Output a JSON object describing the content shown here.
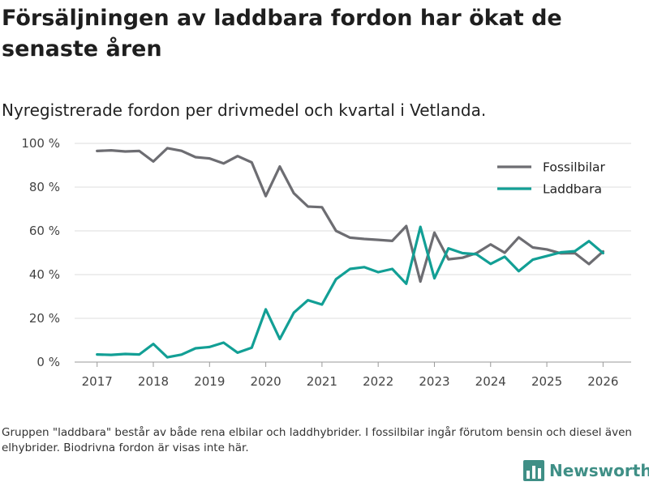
{
  "title": "Försäljningen av laddbara fordon har ökat de senaste åren",
  "subtitle": "Nyregistrerade fordon per drivmedel och kvartal i Vetlanda.",
  "footnote": "Gruppen \"laddbara\" består av både rena elbilar och laddhybrider. I fossilbilar ingår förutom bensin och diesel även elhybrider. Biodrivna fordon är visas inte här.",
  "brand": {
    "name": "Newsworthy",
    "color": "#3f8f86",
    "icon": "bar-chart-logo-icon"
  },
  "chart_data": {
    "type": "line",
    "x_ticks": [
      2017,
      2018,
      2019,
      2020,
      2021,
      2022,
      2023,
      2024,
      2025,
      2026
    ],
    "x_tick_labels": [
      "2017",
      "2018",
      "2019",
      "2020",
      "2021",
      "2022",
      "2023",
      "2024",
      "2025",
      "2026"
    ],
    "xlim": [
      2016.6,
      2026.5
    ],
    "ylim": [
      0,
      100
    ],
    "y_ticks": [
      0,
      20,
      40,
      60,
      80,
      100
    ],
    "y_tick_labels": [
      "0 %",
      "20 %",
      "40 %",
      "60 %",
      "80 %",
      "100 %"
    ],
    "grid": true,
    "legend_position": "top-right",
    "x": [
      2017,
      2017.25,
      2017.5,
      2017.75,
      2018,
      2018.25,
      2018.5,
      2018.75,
      2019,
      2019.25,
      2019.5,
      2019.75,
      2020,
      2020.25,
      2020.5,
      2020.75,
      2021,
      2021.25,
      2021.5,
      2021.75,
      2022,
      2022.25,
      2022.5,
      2022.75,
      2023,
      2023.25,
      2023.5,
      2023.75,
      2024,
      2024.25,
      2024.5,
      2024.75,
      2025,
      2025.25,
      2025.5,
      2025.75,
      2026
    ],
    "series": [
      {
        "name": "Fossilbilar",
        "color": "#6d6d72",
        "values": [
          96.5,
          96.8,
          96.3,
          96.5,
          91.7,
          97.8,
          96.6,
          93.7,
          93.1,
          90.8,
          94.2,
          91.3,
          75.9,
          89.4,
          77.2,
          71.1,
          70.8,
          60.0,
          56.9,
          56.3,
          55.9,
          55.4,
          62.2,
          36.8,
          59.2,
          47.0,
          47.7,
          49.8,
          53.8,
          50.0,
          57.0,
          52.4,
          51.5,
          49.7,
          49.8,
          44.8,
          50.6
        ]
      },
      {
        "name": "Laddbara",
        "color": "#129f95",
        "values": [
          3.5,
          3.3,
          3.7,
          3.5,
          8.3,
          2.2,
          3.4,
          6.3,
          6.9,
          8.9,
          4.3,
          6.6,
          24.1,
          10.5,
          22.6,
          28.3,
          26.3,
          37.9,
          42.6,
          43.4,
          41.1,
          42.6,
          35.8,
          61.8,
          38.3,
          52.0,
          49.8,
          49.3,
          44.9,
          48.2,
          41.6,
          46.8,
          48.5,
          50.2,
          50.7,
          55.3,
          49.8
        ]
      }
    ]
  }
}
